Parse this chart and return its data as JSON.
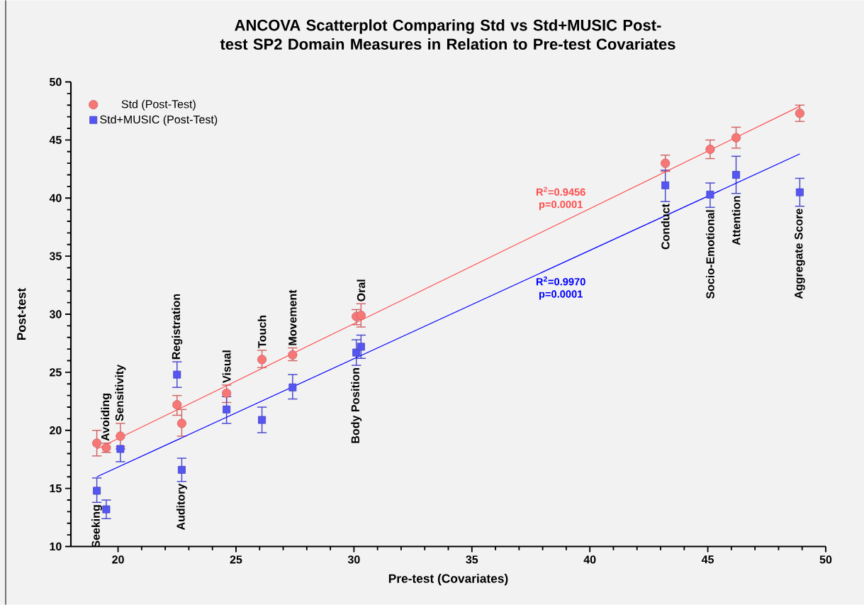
{
  "chart_data": {
    "type": "scatter",
    "title": "ANCOVA Scatterplot Comparing Std vs Std+MUSIC Post-test SP2 Domain Measures in Relation to Pre-test Covariates",
    "xlabel": "Pre-test (Covariates)",
    "ylabel": "Post-test",
    "xlim": [
      18,
      50
    ],
    "xticks": [
      20,
      25,
      30,
      35,
      40,
      45,
      50
    ],
    "ylim": [
      10,
      50
    ],
    "yticks": [
      10,
      15,
      20,
      25,
      30,
      35,
      40,
      45,
      50
    ],
    "grid": false,
    "legend": "top left",
    "series": [
      {
        "name": "Std (Post-Test)",
        "marker": "circle",
        "color": "#f77777",
        "x": [
          19.1,
          19.5,
          20.1,
          22.5,
          22.7,
          24.6,
          26.1,
          27.4,
          30.1,
          30.3,
          43.2,
          45.1,
          46.2,
          48.9
        ],
        "values": [
          18.9,
          18.5,
          19.5,
          22.2,
          20.6,
          23.2,
          26.1,
          26.5,
          29.8,
          29.9,
          43.0,
          44.2,
          45.2,
          47.3
        ],
        "errors": [
          [
            17.8,
            20.0
          ],
          [
            18.1,
            18.9
          ],
          [
            18.6,
            20.6
          ],
          [
            21.3,
            23.0
          ],
          [
            19.5,
            21.8
          ],
          [
            22.4,
            23.9
          ],
          [
            25.4,
            26.9
          ],
          [
            26.0,
            27.1
          ],
          [
            29.1,
            30.4
          ],
          [
            28.9,
            30.9
          ],
          [
            42.3,
            43.7
          ],
          [
            43.4,
            45.0
          ],
          [
            44.3,
            46.1
          ],
          [
            46.6,
            48.0
          ]
        ]
      },
      {
        "name": "Std+MUSIC (Post-Test)",
        "marker": "square",
        "color": "#5555f2",
        "x": [
          19.1,
          19.5,
          20.1,
          22.5,
          22.7,
          24.6,
          26.1,
          27.4,
          30.1,
          30.3,
          43.2,
          45.1,
          46.2,
          48.9
        ],
        "values": [
          14.8,
          13.2,
          18.4,
          24.8,
          16.6,
          21.8,
          20.9,
          23.7,
          26.7,
          27.2,
          41.1,
          40.3,
          42.0,
          40.5
        ],
        "errors": [
          [
            13.8,
            15.9
          ],
          [
            12.4,
            14.0
          ],
          [
            17.3,
            18.4
          ],
          [
            23.7,
            25.9
          ],
          [
            15.6,
            17.6
          ],
          [
            20.6,
            22.9
          ],
          [
            19.8,
            22.0
          ],
          [
            22.7,
            24.8
          ],
          [
            25.6,
            27.8
          ],
          [
            26.2,
            28.2
          ],
          [
            39.7,
            42.4
          ],
          [
            39.2,
            41.3
          ],
          [
            40.4,
            43.6
          ],
          [
            39.3,
            41.7
          ]
        ]
      },
      {
        "name": "R$^{2}$=0.9456 p=0.0001",
        "type": "line",
        "marker": "none",
        "color": "#ff4d4d",
        "x": [
          19.1,
          48.9
        ],
        "values": [
          18.4,
          47.9
        ]
      },
      {
        "name": "R$^{2}$=0.9970 p=0.0001",
        "type": "line",
        "marker": "none",
        "color": "#0000ff",
        "x": [
          19.1,
          48.9
        ],
        "values": [
          16.0,
          43.8
        ]
      }
    ],
    "annotations": [
      {
        "text": "Seeking",
        "x": 19.1,
        "y": 14.8
      },
      {
        "text": "Avoiding",
        "x": 19.5,
        "y": 18.5
      },
      {
        "text": "Sensitivity",
        "x": 20.1,
        "y": 19.5
      },
      {
        "text": "Registration",
        "x": 22.5,
        "y": 24.8
      },
      {
        "text": "Auditory",
        "x": 22.7,
        "y": 16.6
      },
      {
        "text": "Visual",
        "x": 24.6,
        "y": 23.2
      },
      {
        "text": "Touch",
        "x": 26.1,
        "y": 26.1
      },
      {
        "text": "Movement",
        "x": 27.4,
        "y": 26.5
      },
      {
        "text": "Body Position",
        "x": 30.1,
        "y": 26.7
      },
      {
        "text": "Oral",
        "x": 30.3,
        "y": 29.9
      },
      {
        "text": "Conduct",
        "x": 43.2,
        "y": 41.1
      },
      {
        "text": "Socio-Emotional",
        "x": 45.1,
        "y": 40.3
      },
      {
        "text": "Attention",
        "x": 46.2,
        "y": 42.0
      },
      {
        "text": "Aggregate Score",
        "x": 48.9,
        "y": 40.5
      }
    ]
  }
}
